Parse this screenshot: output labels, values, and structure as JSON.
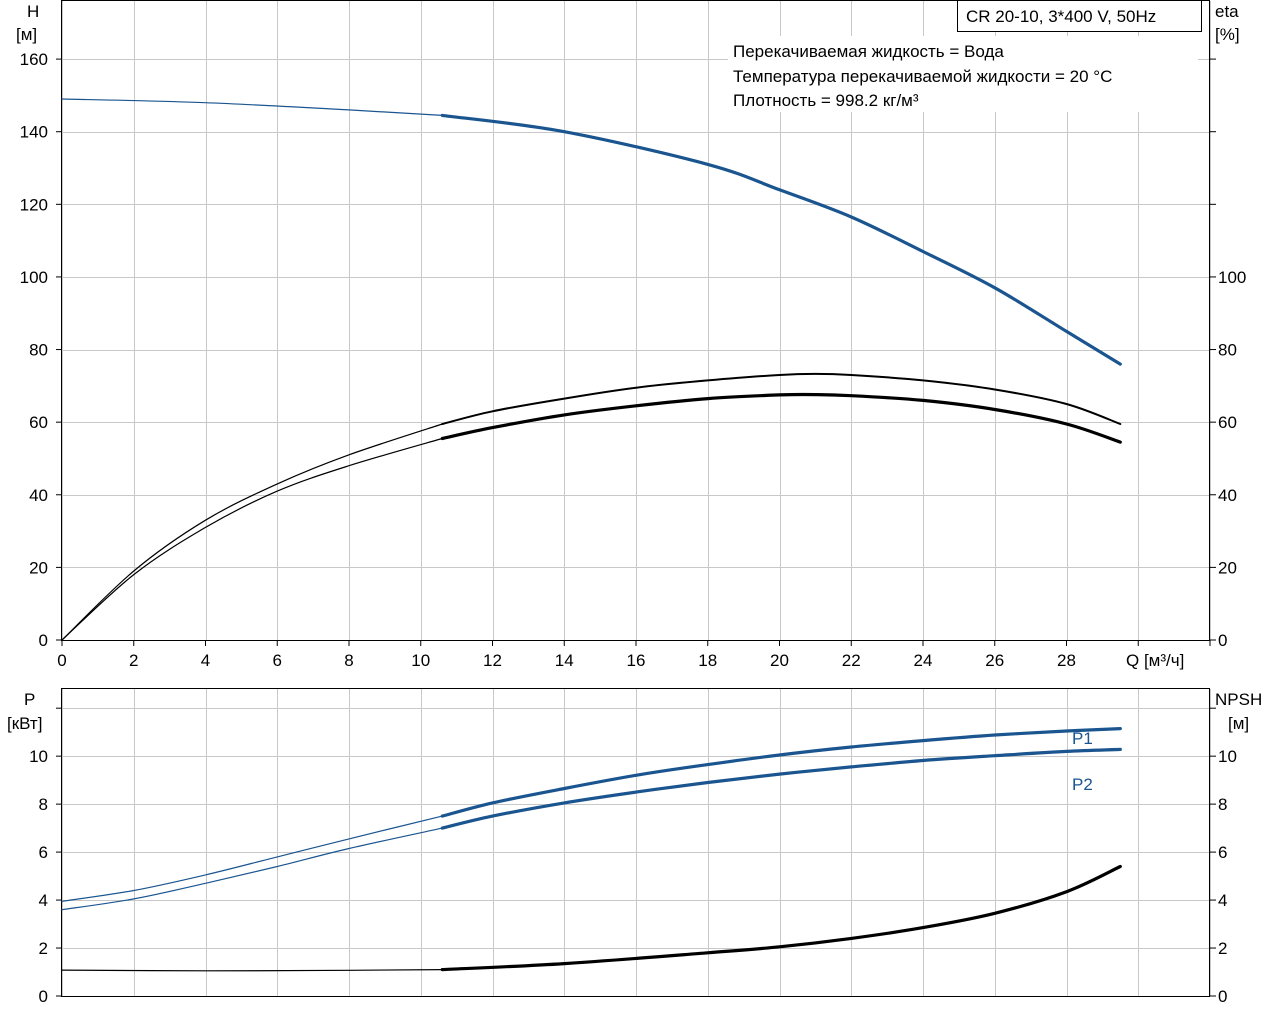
{
  "chart_data": [
    {
      "type": "line",
      "title": "CR 20-10, 3*400 V, 50Hz",
      "annotations": [
        "Перекачиваемая жидкость = Вода",
        "Температура перекачиваемой жидкости = 20 °C",
        "Плотность = 998.2 кг/м³"
      ],
      "ylabel_left": [
        "H",
        "[м]"
      ],
      "ylabel_right": [
        "eta",
        "[%]"
      ],
      "xlabel": "Q [м³/ч]",
      "xlim": [
        0,
        32
      ],
      "ylim_left": [
        0,
        176
      ],
      "ylim_right": [
        0,
        176
      ],
      "x_ticks": [
        "0",
        "2",
        "4",
        "6",
        "8",
        "10",
        "12",
        "14",
        "16",
        "18",
        "20",
        "22",
        "24",
        "26",
        "28"
      ],
      "y_ticks_left": [
        "0",
        "20",
        "40",
        "60",
        "80",
        "100",
        "120",
        "140",
        "160"
      ],
      "y_ticks_right": [
        "0",
        "20",
        "40",
        "60",
        "80",
        "100"
      ],
      "grid": true,
      "series": [
        {
          "color": "#1a5590",
          "axis": "left",
          "x": [
            0,
            4,
            8,
            10.6
          ],
          "y": [
            149,
            148,
            146,
            144.5
          ],
          "x_op": [
            10.6,
            14,
            18,
            20,
            22,
            24,
            26,
            28,
            29.5
          ],
          "y_op": [
            144.5,
            140,
            131,
            124,
            116.5,
            107,
            97,
            85,
            76
          ]
        },
        {
          "color": "#000000",
          "axis": "right",
          "x": [
            0,
            2,
            4,
            6,
            8,
            10.6
          ],
          "y": [
            0,
            19,
            33,
            43,
            51,
            59.5
          ],
          "x_op": [
            10.6,
            12,
            14,
            16,
            18,
            20,
            21,
            22,
            24,
            26,
            28,
            29.5
          ],
          "y_op": [
            59.5,
            63,
            66.5,
            69.5,
            71.5,
            73,
            73.3,
            73,
            71.5,
            69,
            65,
            59.5
          ]
        },
        {
          "color": "#000000",
          "axis": "right",
          "x": [
            0,
            2,
            4,
            6,
            8,
            10.6
          ],
          "y": [
            0,
            18,
            31,
            41,
            48,
            55.5
          ],
          "x_op": [
            10.6,
            12,
            14,
            16,
            18,
            20,
            21,
            22,
            24,
            26,
            28,
            29.5
          ],
          "y_op": [
            55.5,
            58.5,
            62,
            64.5,
            66.5,
            67.5,
            67.6,
            67.3,
            66,
            63.5,
            59.5,
            54.5
          ]
        }
      ]
    },
    {
      "type": "line",
      "ylabel_left": [
        "P",
        "[кВт]"
      ],
      "ylabel_right": [
        "NPSH",
        "[м]"
      ],
      "xlim": [
        0,
        32
      ],
      "ylim_left": [
        0,
        12.8
      ],
      "ylim_right": [
        0,
        12.8
      ],
      "y_ticks_left": [
        "0",
        "2",
        "4",
        "6",
        "8",
        "10"
      ],
      "y_ticks_right": [
        "0",
        "2",
        "4",
        "6",
        "8",
        "10"
      ],
      "grid": true,
      "series": [
        {
          "name": "P1",
          "color": "#1a5590",
          "axis": "left",
          "x": [
            0,
            2,
            4,
            6,
            8,
            10.6
          ],
          "y": [
            3.95,
            4.4,
            5.05,
            5.8,
            6.55,
            7.5
          ],
          "x_op": [
            10.6,
            12,
            14,
            16,
            18,
            20,
            22,
            24,
            26,
            28,
            29.5
          ],
          "y_op": [
            7.5,
            8.05,
            8.65,
            9.2,
            9.65,
            10.05,
            10.38,
            10.65,
            10.88,
            11.05,
            11.15
          ]
        },
        {
          "name": "P2",
          "color": "#1a5590",
          "axis": "left",
          "x": [
            0,
            2,
            4,
            6,
            8,
            10.6
          ],
          "y": [
            3.6,
            4.05,
            4.7,
            5.4,
            6.15,
            7.0
          ],
          "x_op": [
            10.6,
            12,
            14,
            16,
            18,
            20,
            22,
            24,
            26,
            28,
            29.5
          ],
          "y_op": [
            7.0,
            7.5,
            8.05,
            8.5,
            8.9,
            9.25,
            9.55,
            9.82,
            10.02,
            10.2,
            10.28
          ]
        },
        {
          "color": "#000000",
          "axis": "right",
          "x": [
            0,
            4,
            8,
            10.6
          ],
          "y": [
            1.08,
            1.05,
            1.07,
            1.1
          ],
          "x_op": [
            10.6,
            14,
            18,
            20,
            22,
            24,
            26,
            28,
            29.5
          ],
          "y_op": [
            1.1,
            1.35,
            1.8,
            2.05,
            2.4,
            2.85,
            3.45,
            4.35,
            5.4
          ]
        }
      ]
    }
  ]
}
